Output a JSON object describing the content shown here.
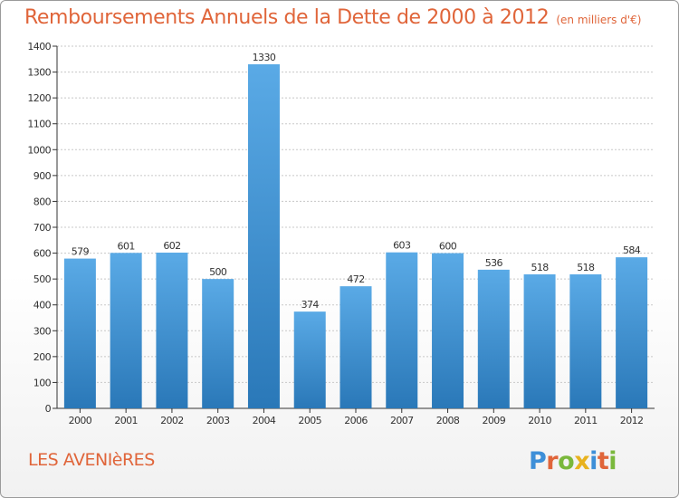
{
  "title": "Remboursements Annuels de la Dette de 2000 à 2012",
  "unit": "(en milliers d'€)",
  "commune": "LES AVENIèRES",
  "logo_text": "Proxiti",
  "colors": {
    "title": "#e0653a",
    "bar_top": "#5aaae6",
    "bar_bottom": "#2a78b8",
    "grid": "#c8c8c8",
    "axis": "#333333"
  },
  "chart_data": {
    "type": "bar",
    "title": "Remboursements Annuels de la Dette de 2000 à 2012",
    "subtitle": "(en milliers d'€)",
    "categories": [
      "2000",
      "2001",
      "2002",
      "2003",
      "2004",
      "2005",
      "2006",
      "2007",
      "2008",
      "2009",
      "2010",
      "2011",
      "2012"
    ],
    "values": [
      579,
      601,
      602,
      500,
      1330,
      374,
      472,
      603,
      600,
      536,
      518,
      518,
      584
    ],
    "ylim": [
      0,
      1400
    ],
    "yticks": [
      0,
      100,
      200,
      300,
      400,
      500,
      600,
      700,
      800,
      900,
      1000,
      1100,
      1200,
      1300,
      1400
    ],
    "grid": true,
    "data_labels": true
  }
}
